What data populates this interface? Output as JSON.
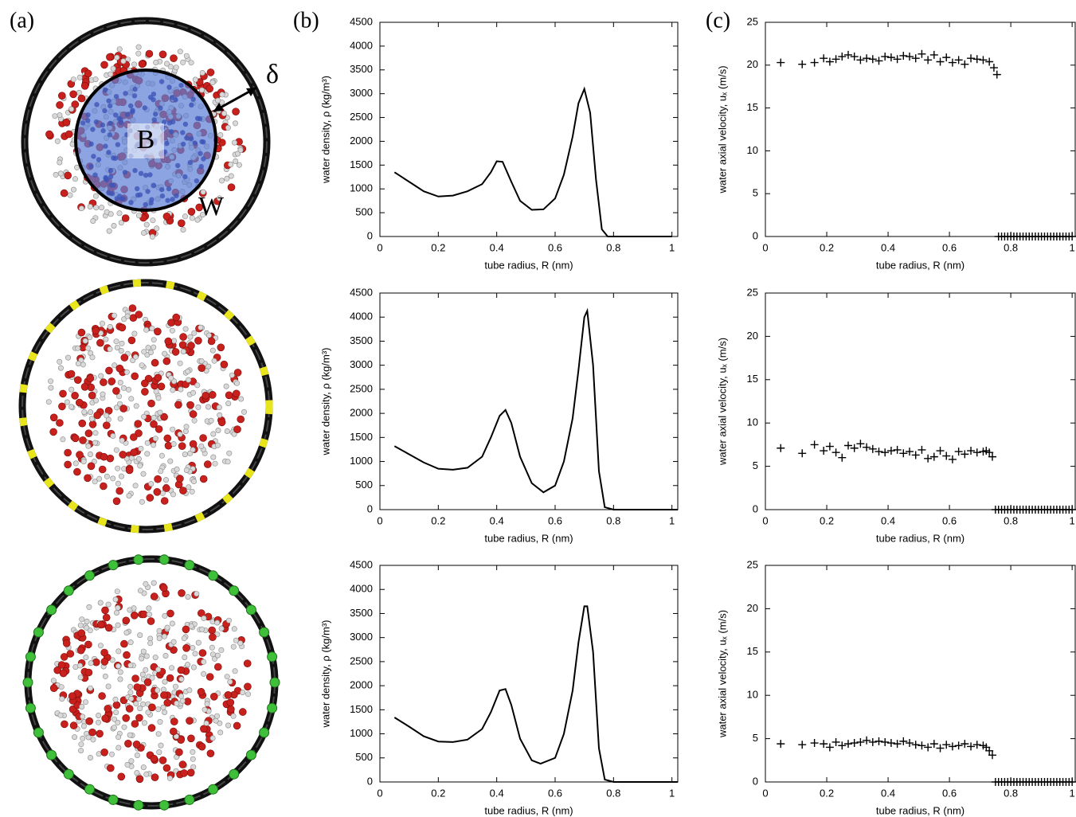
{
  "panel_labels": [
    "(a)",
    "(b)",
    "(c)"
  ],
  "annotations": {
    "delta": "δ",
    "bulk": "B",
    "wall": "W"
  },
  "chart_data": [
    {
      "type": "line",
      "x_label": "tube radius, R (nm)",
      "y_label": "water density, ρ (kg/m³)",
      "color": "#000000",
      "x": [
        0.05,
        0.1,
        0.15,
        0.2,
        0.25,
        0.3,
        0.35,
        0.38,
        0.4,
        0.42,
        0.45,
        0.48,
        0.52,
        0.56,
        0.6,
        0.63,
        0.66,
        0.68,
        0.7,
        0.72,
        0.74,
        0.76,
        0.78,
        0.85,
        1.0
      ],
      "values": [
        1350,
        1150,
        950,
        840,
        860,
        950,
        1100,
        1350,
        1580,
        1570,
        1150,
        750,
        560,
        570,
        800,
        1300,
        2100,
        2800,
        3100,
        2600,
        1200,
        150,
        0,
        0,
        0
      ],
      "xlim": [
        0,
        1.02
      ],
      "ylim": [
        0,
        4500
      ],
      "xticks": [
        0,
        0.2,
        0.4,
        0.6,
        0.8,
        1
      ],
      "yticks": [
        0,
        500,
        1000,
        1500,
        2000,
        2500,
        3000,
        3500,
        4000,
        4500
      ]
    },
    {
      "type": "line",
      "x_label": "tube radius, R (nm)",
      "y_label": "water density, ρ (kg/m³)",
      "color": "#000000",
      "x": [
        0.05,
        0.1,
        0.15,
        0.2,
        0.25,
        0.3,
        0.35,
        0.38,
        0.41,
        0.43,
        0.45,
        0.48,
        0.52,
        0.56,
        0.6,
        0.63,
        0.66,
        0.68,
        0.7,
        0.71,
        0.73,
        0.75,
        0.77,
        0.8,
        1.02
      ],
      "values": [
        1320,
        1150,
        980,
        850,
        830,
        870,
        1100,
        1500,
        1950,
        2070,
        1800,
        1100,
        550,
        360,
        500,
        1000,
        1900,
        2900,
        4000,
        4130,
        3000,
        800,
        50,
        0,
        0
      ],
      "xlim": [
        0,
        1.02
      ],
      "ylim": [
        0,
        4500
      ],
      "xticks": [
        0,
        0.2,
        0.4,
        0.6,
        0.8,
        1
      ],
      "yticks": [
        0,
        500,
        1000,
        1500,
        2000,
        2500,
        3000,
        3500,
        4000,
        4500
      ]
    },
    {
      "type": "line",
      "x_label": "tube radius, R (nm)",
      "y_label": "water density, ρ (kg/m³)",
      "color": "#000000",
      "x": [
        0.05,
        0.1,
        0.15,
        0.2,
        0.25,
        0.3,
        0.35,
        0.38,
        0.41,
        0.43,
        0.45,
        0.48,
        0.52,
        0.55,
        0.6,
        0.63,
        0.66,
        0.68,
        0.7,
        0.71,
        0.73,
        0.75,
        0.77,
        0.8,
        1.02
      ],
      "values": [
        1340,
        1150,
        950,
        840,
        830,
        880,
        1100,
        1450,
        1900,
        1930,
        1600,
        900,
        450,
        380,
        500,
        1000,
        1900,
        2900,
        3650,
        3650,
        2700,
        700,
        50,
        0,
        0
      ],
      "xlim": [
        0,
        1.02
      ],
      "ylim": [
        0,
        4500
      ],
      "xticks": [
        0,
        0.2,
        0.4,
        0.6,
        0.8,
        1
      ],
      "yticks": [
        0,
        500,
        1000,
        1500,
        2000,
        2500,
        3000,
        3500,
        4000,
        4500
      ]
    },
    {
      "type": "scatter",
      "x_label": "tube radius, R (nm)",
      "y_label": "water axial velocity, uₓ (m/s)",
      "color": "#000000",
      "x": [
        0.05,
        0.12,
        0.16,
        0.19,
        0.21,
        0.23,
        0.25,
        0.27,
        0.29,
        0.31,
        0.33,
        0.35,
        0.37,
        0.39,
        0.41,
        0.43,
        0.45,
        0.47,
        0.49,
        0.51,
        0.53,
        0.55,
        0.57,
        0.59,
        0.61,
        0.63,
        0.65,
        0.67,
        0.69,
        0.71,
        0.73,
        0.745,
        0.755,
        0.76,
        0.77,
        0.78,
        0.79,
        0.8,
        0.81,
        0.82,
        0.83,
        0.84,
        0.85,
        0.86,
        0.87,
        0.88,
        0.89,
        0.9,
        0.91,
        0.92,
        0.93,
        0.94,
        0.95,
        0.96,
        0.97,
        0.98,
        0.99,
        1.0
      ],
      "values": [
        20.3,
        20.1,
        20.3,
        20.8,
        20.4,
        20.7,
        21.0,
        21.2,
        21.0,
        20.6,
        20.8,
        20.7,
        20.5,
        21.0,
        20.9,
        20.7,
        21.1,
        21.0,
        20.8,
        21.3,
        20.6,
        21.2,
        20.4,
        20.9,
        20.3,
        20.6,
        20.1,
        20.8,
        20.7,
        20.6,
        20.4,
        19.7,
        18.9,
        0,
        0,
        0,
        0,
        0,
        0,
        0,
        0,
        0,
        0,
        0,
        0,
        0,
        0,
        0,
        0,
        0,
        0,
        0,
        0,
        0,
        0,
        0,
        0,
        0
      ],
      "xlim": [
        0,
        1.01
      ],
      "ylim": [
        0,
        25
      ],
      "xticks": [
        0,
        0.2,
        0.4,
        0.6,
        0.8,
        1
      ],
      "yticks": [
        0,
        5,
        10,
        15,
        20,
        25
      ]
    },
    {
      "type": "scatter",
      "x_label": "tube radius, R (nm)",
      "y_label": "water axial velocity, uₓ (m/s)",
      "color": "#000000",
      "x": [
        0.05,
        0.12,
        0.16,
        0.19,
        0.21,
        0.23,
        0.25,
        0.27,
        0.29,
        0.31,
        0.33,
        0.35,
        0.37,
        0.39,
        0.41,
        0.43,
        0.45,
        0.47,
        0.49,
        0.51,
        0.53,
        0.55,
        0.57,
        0.59,
        0.61,
        0.63,
        0.65,
        0.67,
        0.69,
        0.71,
        0.72,
        0.73,
        0.74,
        0.75,
        0.76,
        0.77,
        0.78,
        0.79,
        0.8,
        0.81,
        0.82,
        0.83,
        0.84,
        0.85,
        0.86,
        0.87,
        0.88,
        0.89,
        0.9,
        0.91,
        0.92,
        0.93,
        0.94,
        0.95,
        0.96,
        0.97,
        0.98,
        0.99,
        1.0
      ],
      "values": [
        7.1,
        6.5,
        7.5,
        6.8,
        7.3,
        6.6,
        6.0,
        7.4,
        7.1,
        7.6,
        7.2,
        7.0,
        6.7,
        6.6,
        6.8,
        6.9,
        6.5,
        6.7,
        6.3,
        6.9,
        5.9,
        6.1,
        6.8,
        6.2,
        5.8,
        6.7,
        6.4,
        6.8,
        6.6,
        6.7,
        6.8,
        6.6,
        6.1,
        0,
        0,
        0,
        0,
        0,
        0,
        0,
        0,
        0,
        0,
        0,
        0,
        0,
        0,
        0,
        0,
        0,
        0,
        0,
        0,
        0,
        0,
        0,
        0,
        0,
        0
      ],
      "xlim": [
        0,
        1.01
      ],
      "ylim": [
        0,
        25
      ],
      "xticks": [
        0,
        0.2,
        0.4,
        0.6,
        0.8,
        1
      ],
      "yticks": [
        0,
        5,
        10,
        15,
        20,
        25
      ]
    },
    {
      "type": "scatter",
      "x_label": "tube radius, R (nm)",
      "y_label": "water axial velocity, uₓ (m/s)",
      "color": "#000000",
      "x": [
        0.05,
        0.12,
        0.16,
        0.19,
        0.21,
        0.23,
        0.25,
        0.27,
        0.29,
        0.31,
        0.33,
        0.35,
        0.37,
        0.39,
        0.41,
        0.43,
        0.45,
        0.47,
        0.49,
        0.51,
        0.53,
        0.55,
        0.57,
        0.59,
        0.61,
        0.63,
        0.65,
        0.67,
        0.69,
        0.71,
        0.72,
        0.73,
        0.74,
        0.75,
        0.76,
        0.77,
        0.78,
        0.79,
        0.8,
        0.81,
        0.82,
        0.83,
        0.84,
        0.85,
        0.86,
        0.87,
        0.88,
        0.89,
        0.9,
        0.91,
        0.92,
        0.93,
        0.94,
        0.95,
        0.96,
        0.97,
        0.98,
        0.99,
        1.0
      ],
      "values": [
        4.4,
        4.3,
        4.5,
        4.4,
        4.0,
        4.6,
        4.2,
        4.4,
        4.5,
        4.6,
        4.8,
        4.6,
        4.7,
        4.6,
        4.5,
        4.4,
        4.7,
        4.5,
        4.3,
        4.2,
        4.0,
        4.4,
        3.9,
        4.3,
        4.1,
        4.2,
        4.4,
        4.1,
        4.3,
        4.2,
        4.0,
        3.6,
        3.1,
        0,
        0,
        0,
        0,
        0,
        0,
        0,
        0,
        0,
        0,
        0,
        0,
        0,
        0,
        0,
        0,
        0,
        0,
        0,
        0,
        0,
        0,
        0,
        0,
        0,
        0
      ],
      "xlim": [
        0,
        1.01
      ],
      "ylim": [
        0,
        25
      ],
      "xticks": [
        0,
        0.2,
        0.4,
        0.6,
        0.8,
        1
      ],
      "yticks": [
        0,
        5,
        10,
        15,
        20,
        25
      ]
    }
  ]
}
